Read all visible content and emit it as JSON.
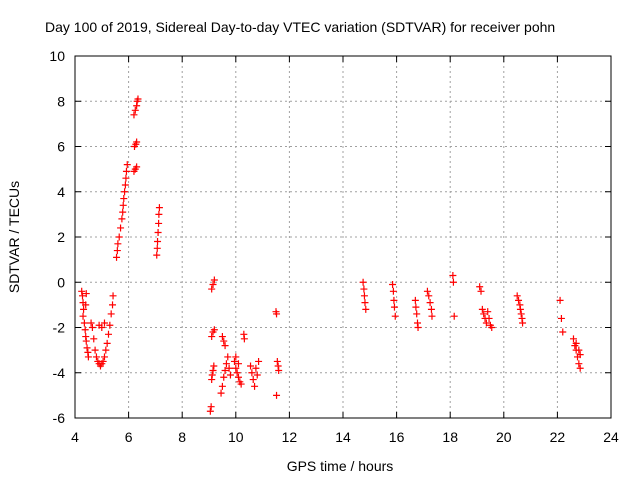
{
  "chart_data": {
    "type": "scatter",
    "title": "Day 100 of 2019, Sidereal Day-to-day VTEC variation (SDTVAR) for receiver pohn",
    "xlabel": "GPS time / hours",
    "ylabel": "SDTVAR / TECUs",
    "xlim": [
      4,
      24
    ],
    "ylim": [
      -6,
      10
    ],
    "xticks": [
      4,
      6,
      8,
      10,
      12,
      14,
      16,
      18,
      20,
      22,
      24
    ],
    "yticks": [
      -6,
      -4,
      -2,
      0,
      2,
      4,
      6,
      8,
      10
    ],
    "grid": true,
    "marker": "+",
    "color": "#ff0000",
    "series": [
      {
        "name": "SDTVAR",
        "points": [
          [
            4.25,
            -0.4
          ],
          [
            4.28,
            -0.6
          ],
          [
            4.3,
            -0.9
          ],
          [
            4.32,
            -1.2
          ],
          [
            4.3,
            -1.5
          ],
          [
            4.35,
            -1.8
          ],
          [
            4.38,
            -2.1
          ],
          [
            4.4,
            -2.4
          ],
          [
            4.42,
            -2.6
          ],
          [
            4.45,
            -2.9
          ],
          [
            4.48,
            -3.1
          ],
          [
            4.5,
            -3.3
          ],
          [
            4.4,
            -1.0
          ],
          [
            4.42,
            -0.5
          ],
          [
            4.6,
            -1.8
          ],
          [
            4.65,
            -2.0
          ],
          [
            4.7,
            -2.5
          ],
          [
            4.75,
            -3.0
          ],
          [
            4.8,
            -3.3
          ],
          [
            4.85,
            -3.5
          ],
          [
            4.9,
            -3.6
          ],
          [
            4.95,
            -3.7
          ],
          [
            5.0,
            -3.6
          ],
          [
            5.05,
            -3.5
          ],
          [
            5.1,
            -3.3
          ],
          [
            5.15,
            -3.0
          ],
          [
            5.2,
            -2.7
          ],
          [
            5.25,
            -2.3
          ],
          [
            5.3,
            -1.9
          ],
          [
            5.35,
            -1.4
          ],
          [
            5.4,
            -1.0
          ],
          [
            5.42,
            -0.6
          ],
          [
            4.9,
            -1.9
          ],
          [
            5.0,
            -2.0
          ],
          [
            5.1,
            -1.8
          ],
          [
            5.55,
            1.1
          ],
          [
            5.58,
            1.4
          ],
          [
            5.6,
            1.7
          ],
          [
            5.65,
            2.0
          ],
          [
            5.7,
            2.4
          ],
          [
            5.75,
            2.8
          ],
          [
            5.78,
            3.1
          ],
          [
            5.8,
            3.4
          ],
          [
            5.82,
            3.7
          ],
          [
            5.85,
            4.0
          ],
          [
            5.88,
            4.3
          ],
          [
            5.9,
            4.6
          ],
          [
            5.92,
            4.9
          ],
          [
            5.95,
            5.2
          ],
          [
            6.2,
            4.9
          ],
          [
            6.25,
            5.0
          ],
          [
            6.3,
            5.1
          ],
          [
            6.22,
            6.0
          ],
          [
            6.27,
            6.1
          ],
          [
            6.3,
            6.2
          ],
          [
            6.2,
            7.4
          ],
          [
            6.25,
            7.6
          ],
          [
            6.3,
            7.8
          ],
          [
            6.32,
            8.0
          ],
          [
            6.35,
            8.1
          ],
          [
            7.05,
            1.2
          ],
          [
            7.07,
            1.5
          ],
          [
            7.08,
            1.8
          ],
          [
            7.1,
            2.2
          ],
          [
            7.12,
            2.6
          ],
          [
            7.13,
            3.0
          ],
          [
            7.15,
            3.3
          ],
          [
            9.05,
            -5.7
          ],
          [
            9.08,
            -5.5
          ],
          [
            9.1,
            -4.3
          ],
          [
            9.12,
            -4.1
          ],
          [
            9.15,
            -3.9
          ],
          [
            9.18,
            -3.7
          ],
          [
            9.1,
            -2.4
          ],
          [
            9.15,
            -2.2
          ],
          [
            9.2,
            -2.1
          ],
          [
            9.1,
            -0.3
          ],
          [
            9.15,
            -0.1
          ],
          [
            9.2,
            0.1
          ],
          [
            9.45,
            -4.9
          ],
          [
            9.5,
            -4.6
          ],
          [
            9.55,
            -4.2
          ],
          [
            9.6,
            -3.9
          ],
          [
            9.65,
            -3.6
          ],
          [
            9.5,
            -2.4
          ],
          [
            9.55,
            -2.6
          ],
          [
            9.6,
            -2.8
          ],
          [
            9.7,
            -3.3
          ],
          [
            9.75,
            -3.8
          ],
          [
            9.8,
            -4.1
          ],
          [
            9.95,
            -3.5
          ],
          [
            10.0,
            -3.8
          ],
          [
            10.05,
            -4.0
          ],
          [
            10.1,
            -4.2
          ],
          [
            10.15,
            -4.4
          ],
          [
            10.2,
            -4.5
          ],
          [
            10.3,
            -2.3
          ],
          [
            10.32,
            -2.5
          ],
          [
            10.0,
            -3.3
          ],
          [
            10.1,
            -3.6
          ],
          [
            10.55,
            -3.7
          ],
          [
            10.6,
            -4.0
          ],
          [
            10.65,
            -4.3
          ],
          [
            10.7,
            -4.6
          ],
          [
            10.75,
            -3.8
          ],
          [
            10.8,
            -4.1
          ],
          [
            10.85,
            -3.5
          ],
          [
            11.5,
            -1.3
          ],
          [
            11.52,
            -1.4
          ],
          [
            11.55,
            -3.5
          ],
          [
            11.58,
            -3.7
          ],
          [
            11.6,
            -3.9
          ],
          [
            11.52,
            -5.0
          ],
          [
            14.75,
            0.0
          ],
          [
            14.78,
            -0.3
          ],
          [
            14.8,
            -0.6
          ],
          [
            14.82,
            -0.9
          ],
          [
            14.85,
            -1.2
          ],
          [
            15.85,
            -0.1
          ],
          [
            15.88,
            -0.4
          ],
          [
            15.9,
            -0.8
          ],
          [
            15.92,
            -1.1
          ],
          [
            15.95,
            -1.5
          ],
          [
            16.7,
            -0.8
          ],
          [
            16.72,
            -1.1
          ],
          [
            16.75,
            -1.4
          ],
          [
            16.78,
            -1.8
          ],
          [
            16.8,
            -2.0
          ],
          [
            17.15,
            -0.4
          ],
          [
            17.2,
            -0.6
          ],
          [
            17.25,
            -0.9
          ],
          [
            17.3,
            -1.2
          ],
          [
            17.32,
            -1.5
          ],
          [
            18.1,
            0.3
          ],
          [
            18.12,
            0.0
          ],
          [
            18.15,
            -1.5
          ],
          [
            19.1,
            -0.2
          ],
          [
            19.15,
            -0.4
          ],
          [
            19.2,
            -1.2
          ],
          [
            19.25,
            -1.4
          ],
          [
            19.3,
            -1.6
          ],
          [
            19.35,
            -1.8
          ],
          [
            19.4,
            -1.3
          ],
          [
            19.45,
            -1.6
          ],
          [
            19.5,
            -1.9
          ],
          [
            19.55,
            -2.0
          ],
          [
            20.5,
            -0.6
          ],
          [
            20.55,
            -0.8
          ],
          [
            20.6,
            -1.0
          ],
          [
            20.62,
            -1.2
          ],
          [
            20.65,
            -1.4
          ],
          [
            20.68,
            -1.6
          ],
          [
            20.7,
            -1.8
          ],
          [
            22.1,
            -0.8
          ],
          [
            22.15,
            -1.6
          ],
          [
            22.2,
            -2.2
          ],
          [
            22.6,
            -2.5
          ],
          [
            22.65,
            -2.8
          ],
          [
            22.7,
            -3.0
          ],
          [
            22.75,
            -3.3
          ],
          [
            22.8,
            -3.6
          ],
          [
            22.85,
            -3.8
          ],
          [
            22.7,
            -2.7
          ],
          [
            22.8,
            -3.0
          ],
          [
            22.85,
            -3.2
          ]
        ]
      }
    ]
  }
}
